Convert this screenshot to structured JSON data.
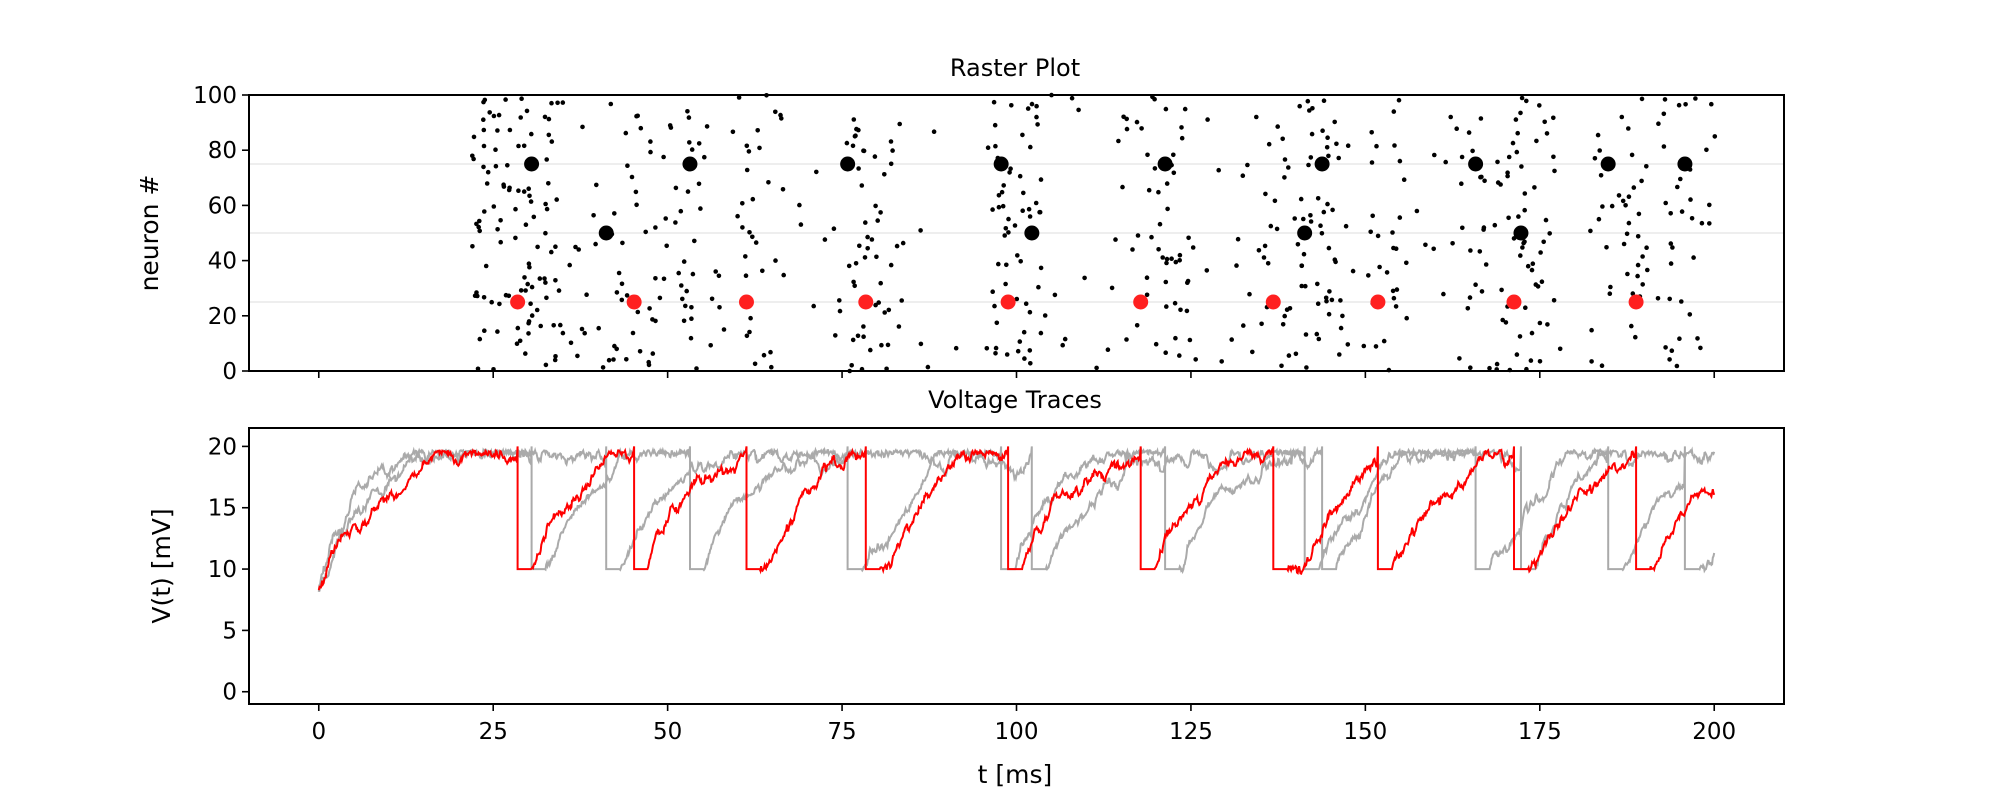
{
  "chart_data": [
    {
      "type": "scatter",
      "title": "Raster Plot",
      "ylabel": "neuron #",
      "xlim": [
        -10,
        210
      ],
      "ylim": [
        0,
        100
      ],
      "yticks": [
        "0",
        "20",
        "40",
        "60",
        "80",
        "100"
      ],
      "reference_lines_y": [
        25,
        50,
        75
      ],
      "colors": {
        "dots": "#000000",
        "highlight_red": "#ff2020",
        "highlight_black": "#000000",
        "reference": "#dddddd"
      },
      "highlighted_spikes": [
        {
          "neuron": 25,
          "color": "red",
          "times": [
            28.5,
            45.2,
            61.3,
            78.4,
            98.8,
            117.8,
            136.8,
            151.8,
            171.3,
            188.8
          ]
        },
        {
          "neuron": 50,
          "color": "black",
          "times": [
            41.2,
            102.2,
            141.3,
            172.3
          ]
        },
        {
          "neuron": 75,
          "color": "black",
          "times": [
            30.5,
            53.2,
            75.8,
            97.8,
            121.3,
            143.8,
            165.8,
            184.8,
            195.8
          ]
        }
      ],
      "background_spikes_note": "random population spikes, ~0.6 per neuron per ms after 22 ms"
    },
    {
      "type": "line",
      "title": "Voltage Traces",
      "xlabel": "t [ms]",
      "ylabel": "V(t) [mV]",
      "xlim": [
        -10,
        210
      ],
      "ylim": [
        -1,
        21.5
      ],
      "xticks": [
        "0",
        "25",
        "50",
        "75",
        "100",
        "125",
        "150",
        "175",
        "200"
      ],
      "yticks": [
        "0",
        "5",
        "10",
        "15",
        "20"
      ],
      "threshold": 20,
      "reset": 10,
      "refractory_ms": 2,
      "series": [
        {
          "color": "#aaaaaa",
          "spike_times": [
            41.2,
            102.2,
            141.3,
            172.3
          ]
        },
        {
          "color": "#aaaaaa",
          "spike_times": [
            30.5,
            53.2,
            75.8,
            97.8,
            121.3,
            143.8,
            165.8,
            184.8,
            195.8
          ]
        },
        {
          "color": "#ff0000",
          "spike_times": [
            28.5,
            45.2,
            61.3,
            78.4,
            98.8,
            117.8,
            136.8,
            151.8,
            171.3,
            188.8
          ]
        }
      ]
    }
  ]
}
